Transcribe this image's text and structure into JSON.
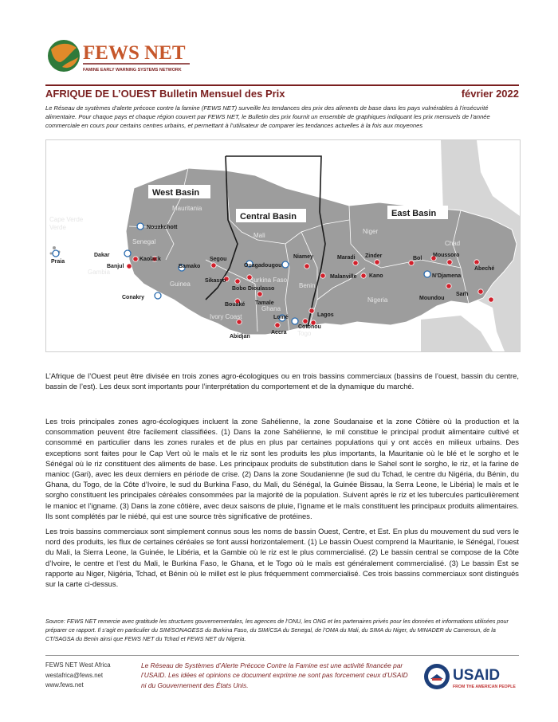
{
  "logo": {
    "name": "FEWS NET",
    "tagline": "FAMINE EARLY WARNING SYSTEMS NETWORK"
  },
  "header": {
    "region": "AFRIQUE DE L’OUEST",
    "subtitle": "Bulletin Mensuel des Prix",
    "date": "février 2022"
  },
  "intro": "Le Réseau de systèmes d’alerte précoce contre la famine (FEWS NET) surveille les tendances des prix des aliments de base dans les pays vulnérables à l’insécurité alimentaire. Pour chaque pays et chaque région couvert par FEWS NET, le Bulletin des prix fournit un ensemble de graphiques indiquant les prix mensuels de l’année commerciale en cours pour certains centres urbains, et permettant à l’utilisateur de comparer les tendances actuelles à la fois aux moyennes",
  "map": {
    "basins": [
      "West Basin",
      "Central Basin",
      "East Basin"
    ],
    "countries": [
      "Cape Verde",
      "Mauritania",
      "Senegal",
      "Gambia",
      "Guinea",
      "Mali",
      "Burkina Faso",
      "Ghana",
      "Ivory Coast",
      "Togo",
      "Benin",
      "Niger",
      "Nigeria",
      "Chad"
    ],
    "cities": [
      "Nouakchott",
      "Dakar",
      "Kaolack",
      "Praia",
      "Banjul",
      "Bamako",
      "Segou",
      "Ouagadougou",
      "Niamey",
      "Maradi",
      "Zinder",
      "Bol",
      "Moussoro",
      "Abeché",
      "Sikasso",
      "Bobo Dioulasso",
      "Malanville",
      "Kano",
      "N’Djamena",
      "Conakry",
      "Bouaké",
      "Tamale",
      "Lagos",
      "Moundou",
      "Sarh",
      "Lomé",
      "Cotonou",
      "Abidjan",
      "Accra"
    ]
  },
  "body": {
    "p1": "L’Afrique de l’Ouest peut être divisée en trois zones agro-écologiques ou en trois bassins commerciaux (bassins de l’ouest, bassin du centre, bassin de l’est).  Les deux sont importants pour l’interprétation du comportement et de la dynamique du marché.",
    "p2": "Les trois principales zones agro-écologiques incluent la zone Sahélienne, la zone Soudanaise et la zone Côtière où la production et la consommation peuvent être facilement classifiées. (1) Dans la zone Sahélienne, le mil constitue le principal produit alimentaire cultivé et consommé en particulier dans les zones rurales et de plus en plus par certaines populations qui y ont accès en milieux urbains. Des exceptions sont faites pour le Cap Vert où le maïs et le riz sont les produits les plus importants, la Mauritanie où le blé et le sorgho et le Sénégal où le riz constituent des aliments de base. Les principaux produits de substitution dans le Sahel sont le sorgho, le riz, et la farine de manioc (Gari), avec  les deux derniers en période de crise. (2) Dans la zone Soudanienne (le sud du Tchad, le centre du Nigéria, du Bénin, du Ghana, du Togo, de la Côte d’Ivoire, le sud du Burkina Faso, du Mali, du Sénégal, la Guinée Bissau, la Serra Leone, le Libéria) le maïs et le sorgho constituent les principales céréales consommées par la majorité de la population. Suivent après le riz et les tubercules particulièrement le manioc et l’igname. (3) Dans la zone côtière, avec deux saisons de pluie, l’igname et le maïs constituent les principaux produits alimentaires. Ils sont complétés par le niébé, qui est une source très significative de protéines.",
    "p3": "Les trois bassins commerciaux sont simplement connus sous les noms de bassin Ouest, Centre, et Est. En plus du mouvement du sud vers le nord des produits, les flux de  certaines céréales se font aussi horizontalement. (1) Le bassin Ouest comprend la Mauritanie, le Sénégal, l’ouest du Mali, la Sierra Leone, la Guinée, le Libéria, et la Gambie où le riz est le plus commercialisé. (2) Le bassin central se compose de la Côte d’Ivoire, le centre et l’est du Mali, le Burkina Faso, le Ghana, et le Togo où le maïs est généralement commercialisé. (3) Le bassin Est se rapporte au Niger, Nigéria, Tchad, et Bénin où le millet est le plus fréquemment commercialisé. Ces trois bassins commerciaux sont distingués sur la carte ci-dessus."
  },
  "source": "Source: FEWS NET remercie avec gratitude les structures gouvernementales, les agences de l’ONU, les ONG et les partenaires privés pour les données et informations utilisées pour préparer ce rapport. Il s’agit en particulier du SIM/SONAGESS du Burkina Faso, du SIM/CSA du Senegal, de l’OMA du Mali, du SIMA du Niger, du MINADER du Cameroun, de la CT/SAGSA du Benin ainsi que FEWS NET du Tchad et FEWS NET du Nigeria.",
  "footer": {
    "org": "FEWS NET West Africa",
    "email": "westafrica@fews.net",
    "website": "www.fews.net",
    "disclaimer": "Le Réseau de Systèmes d’Alerte Précoce Contre la Famine est une activité financée par l’USAID. Les idées et opinions ce document exprime ne sont pas forcement ceux d’USAID ni du Gouvernement des États Unis.",
    "usaid_name": "USAID",
    "usaid_tagline": "FROM THE AMERICAN PEOPLE"
  },
  "colors": {
    "brand_red": "#7a1f1f",
    "map_land": "#9d9d9d",
    "map_other": "#d6d6d6",
    "market_red": "#d11f2a",
    "capital_blue": "#2a6cb0"
  }
}
